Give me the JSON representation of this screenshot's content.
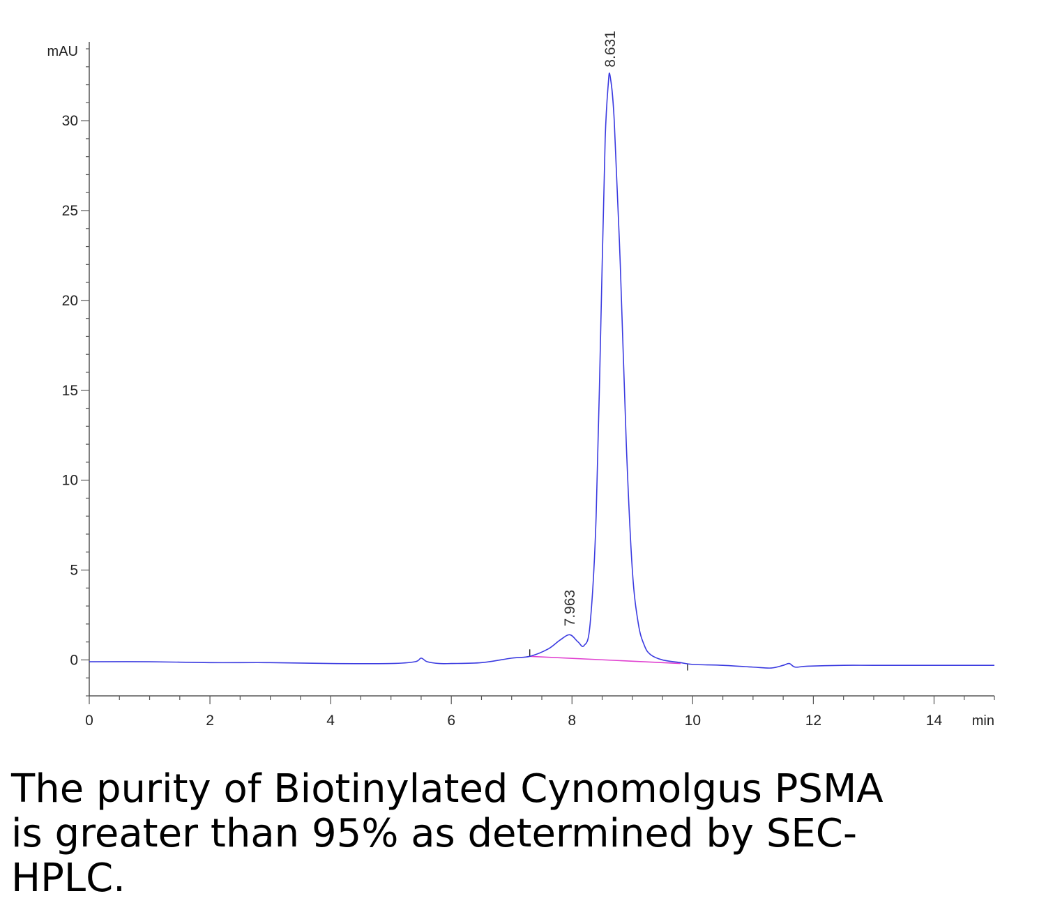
{
  "caption": "The purity of Biotinylated Cynomolgus PSMA is greater than 95% as determined by SEC-HPLC.",
  "chart_data": {
    "type": "line",
    "title": "",
    "xlabel": "min",
    "ylabel": "mAU",
    "xlim": [
      0,
      15
    ],
    "ylim": [
      -2,
      34
    ],
    "x_ticks": [
      0,
      2,
      4,
      6,
      8,
      10,
      12,
      14
    ],
    "y_ticks": [
      0,
      5,
      10,
      15,
      20,
      25,
      30
    ],
    "grid": false,
    "colors": {
      "signal": "#3a3ae0",
      "baseline": "#e040d0",
      "axis": "#555555"
    },
    "series": [
      {
        "x": [
          0,
          1,
          2,
          3,
          4,
          5,
          5.4,
          5.5,
          5.6,
          5.8,
          6,
          6.5,
          7,
          7.3,
          7.6,
          7.8,
          7.963,
          8.1,
          8.2,
          8.3,
          8.4,
          8.5,
          8.55,
          8.6,
          8.631,
          8.7,
          8.8,
          8.9,
          9.0,
          9.1,
          9.2,
          9.3,
          9.5,
          9.8,
          10,
          10.5,
          11,
          11.3,
          11.5,
          11.6,
          11.7,
          11.9,
          12.5,
          13,
          14,
          15
        ],
        "y": [
          -0.1,
          -0.1,
          -0.15,
          -0.15,
          -0.2,
          -0.2,
          -0.1,
          0.1,
          -0.1,
          -0.2,
          -0.2,
          -0.15,
          0.1,
          0.2,
          0.6,
          1.1,
          1.4,
          1.0,
          0.8,
          2.0,
          8.0,
          22.0,
          29.0,
          32.0,
          32.5,
          30.0,
          22.0,
          12.0,
          5.0,
          2.0,
          0.8,
          0.3,
          0.0,
          -0.15,
          -0.25,
          -0.3,
          -0.4,
          -0.45,
          -0.3,
          -0.2,
          -0.4,
          -0.35,
          -0.3,
          -0.3,
          -0.3,
          -0.3
        ]
      }
    ],
    "baseline_segment": {
      "x": [
        7.3,
        9.8
      ],
      "y": [
        0.2,
        -0.2
      ]
    },
    "annotations": [
      {
        "label": "7.963",
        "x": 7.963,
        "y": 1.4
      },
      {
        "label": "8.631",
        "x": 8.631,
        "y": 32.5
      }
    ]
  }
}
